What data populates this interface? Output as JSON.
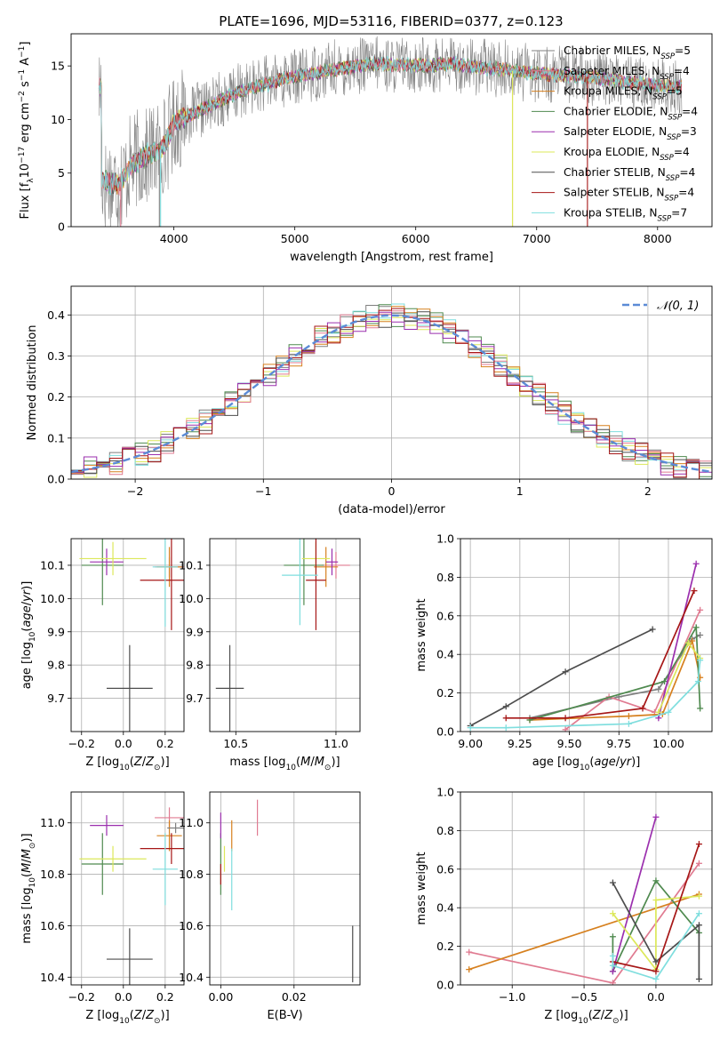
{
  "figure": {
    "title": "PLATE=1696, MJD=53116, FIBERID=0377, z=0.123"
  },
  "colors": {
    "chabrier_miles": "#7f7f7f",
    "salpeter_miles": "#e07b91",
    "kroupa_miles": "#d6801f",
    "chabrier_elodie": "#4f8a4f",
    "salpeter_elodie": "#9b2fae",
    "kroupa_elodie": "#dce85a",
    "chabrier_stelib": "#4d4d4d",
    "salpeter_stelib": "#a61717",
    "kroupa_stelib": "#7fdede",
    "normal_curve": "#5b8bd6",
    "grid": "#b0b0b0"
  },
  "legend": {
    "spectrum": [
      {
        "pre": "Chabrier MILES, N",
        "sub": "SSP",
        "post": "=5",
        "color": "#7f7f7f"
      },
      {
        "pre": "Salpeter MILES, N",
        "sub": "SSP",
        "post": "=4",
        "color": "#e07b91"
      },
      {
        "pre": "Kroupa MILES, N",
        "sub": "SSP",
        "post": "=5",
        "color": "#d6801f"
      },
      {
        "pre": "Chabrier ELODIE, N",
        "sub": "SSP",
        "post": "=4",
        "color": "#4f8a4f"
      },
      {
        "pre": "Salpeter ELODIE, N",
        "sub": "SSP",
        "post": "=3",
        "color": "#9b2fae"
      },
      {
        "pre": "Kroupa ELODIE, N",
        "sub": "SSP",
        "post": "=4",
        "color": "#dce85a"
      },
      {
        "pre": "Chabrier STELIB, N",
        "sub": "SSP",
        "post": "=4",
        "color": "#4d4d4d"
      },
      {
        "pre": "Salpeter STELIB, N",
        "sub": "SSP",
        "post": "=4",
        "color": "#a61717"
      },
      {
        "pre": "Kroupa STELIB, N",
        "sub": "SSP",
        "post": "=7",
        "color": "#7fdede"
      }
    ],
    "residual": "𝒩(0, 1)"
  },
  "chart_data": [
    {
      "id": "spectrum",
      "type": "line",
      "xlabel": "wavelength [Angstrom, rest frame]",
      "ylabel": "Flux [f_λ 10^-17 erg cm^-2 s^-1 A^-1]",
      "xlim": [
        3150,
        8450
      ],
      "ylim": [
        0,
        18
      ],
      "xticks": [
        4000,
        5000,
        6000,
        7000,
        8000
      ],
      "yticks": [
        0,
        5,
        10,
        15
      ],
      "grid": false,
      "legend_position": "right",
      "continuum": [
        [
          3400,
          4.2
        ],
        [
          3550,
          4.0
        ],
        [
          3650,
          5.8
        ],
        [
          3800,
          6.8
        ],
        [
          3900,
          7.2
        ],
        [
          3950,
          8.2
        ],
        [
          4000,
          9.8
        ],
        [
          4150,
          10.5
        ],
        [
          4300,
          11.3
        ],
        [
          4500,
          12.4
        ],
        [
          4700,
          13.1
        ],
        [
          4900,
          13.8
        ],
        [
          5100,
          14.2
        ],
        [
          5300,
          14.6
        ],
        [
          5500,
          15.0
        ],
        [
          5700,
          15.2
        ],
        [
          5900,
          15.1
        ],
        [
          6100,
          15.0
        ],
        [
          6300,
          15.2
        ],
        [
          6500,
          14.9
        ],
        [
          6700,
          14.7
        ],
        [
          6900,
          14.4
        ],
        [
          7100,
          14.2
        ],
        [
          7300,
          14.1
        ],
        [
          7500,
          13.9
        ],
        [
          7700,
          13.6
        ],
        [
          7900,
          13.3
        ],
        [
          8100,
          13.1
        ],
        [
          8200,
          13.0
        ]
      ],
      "x_range": [
        3380,
        8200
      ],
      "noise": [
        2.6,
        0.5,
        0.45,
        0.5,
        0.45,
        0.4,
        0.5,
        0.45,
        0.55
      ],
      "spikes": [
        {
          "series": 2,
          "x": 6800,
          "y": 0
        },
        {
          "series": 5,
          "x": 6800,
          "y": 0
        },
        {
          "series": 7,
          "x": 7420,
          "y": 0
        },
        {
          "series": 0,
          "x": 3880,
          "y": 0
        },
        {
          "series": 8,
          "x": 3890,
          "y": 0
        },
        {
          "series": 1,
          "x": 3560,
          "y": 0
        }
      ]
    },
    {
      "id": "residuals",
      "type": "histogram",
      "xlabel": "(data-model)/error",
      "ylabel": "Normed distribution",
      "xlim": [
        -2.5,
        2.5
      ],
      "ylim": [
        0,
        0.47
      ],
      "xticks": [
        -2,
        -1,
        0,
        1,
        2
      ],
      "yticks": [
        0.0,
        0.1,
        0.2,
        0.3,
        0.4
      ],
      "grid": true,
      "bin_width": 0.1,
      "legend_position": "top-right",
      "normal": {
        "mean": 0,
        "sigma": 1
      }
    },
    {
      "id": "age_vs_Z",
      "type": "errorbar",
      "xlabel": "Z [log10(Z/Z☉)]",
      "ylabel": "age  [log10(age/yr)]",
      "xlim": [
        -0.25,
        0.29
      ],
      "ylim": [
        9.6,
        10.18
      ],
      "xticks": [
        -0.2,
        0.0,
        0.2
      ],
      "yticks": [
        9.7,
        9.8,
        9.9,
        10.0,
        10.1
      ],
      "grid": true,
      "points": [
        {
          "x": 0.22,
          "y": 10.095,
          "xerr": 0.07,
          "yerr": 0.03,
          "c": 1
        },
        {
          "x": 0.22,
          "y": 10.095,
          "xerr": 0.06,
          "yerr": 0.06,
          "c": 2
        },
        {
          "x": -0.1,
          "y": 10.1,
          "xerr": 0.1,
          "yerr": 0.12,
          "c": 3
        },
        {
          "x": -0.08,
          "y": 10.11,
          "xerr": 0.08,
          "yerr": 0.04,
          "c": 4
        },
        {
          "x": -0.05,
          "y": 10.12,
          "xerr": 0.16,
          "yerr": 0.05,
          "c": 5
        },
        {
          "x": 0.03,
          "y": 9.73,
          "xerr": 0.11,
          "yerr": 0.13,
          "c": 6
        },
        {
          "x": 0.23,
          "y": 10.055,
          "xerr": 0.15,
          "yerr": 0.15,
          "c": 7
        },
        {
          "x": 0.2,
          "y": 10.095,
          "xerr": 0.06,
          "yerr": 0.18,
          "c": 8
        }
      ]
    },
    {
      "id": "age_vs_mass",
      "type": "errorbar",
      "xlabel": "mass [log10(M/M☉)]",
      "ylabel": "",
      "xlim": [
        10.37,
        11.12
      ],
      "ylim": [
        9.6,
        10.18
      ],
      "xticks": [
        10.5,
        11.0
      ],
      "yticks": [
        9.7,
        9.8,
        9.9,
        10.0,
        10.1
      ],
      "grid": true,
      "points": [
        {
          "x": 11.0,
          "y": 10.1,
          "xerr": 0.07,
          "yerr": 0.04,
          "c": 1
        },
        {
          "x": 10.95,
          "y": 10.095,
          "xerr": 0.06,
          "yerr": 0.06,
          "c": 2
        },
        {
          "x": 10.84,
          "y": 10.1,
          "xerr": 0.1,
          "yerr": 0.12,
          "c": 3
        },
        {
          "x": 10.98,
          "y": 10.11,
          "xerr": 0.03,
          "yerr": 0.04,
          "c": 4
        },
        {
          "x": 10.9,
          "y": 10.12,
          "xerr": 0.07,
          "yerr": 0.05,
          "c": 5
        },
        {
          "x": 10.47,
          "y": 9.73,
          "xerr": 0.07,
          "yerr": 0.13,
          "c": 6
        },
        {
          "x": 10.9,
          "y": 10.055,
          "xerr": 0.05,
          "yerr": 0.15,
          "c": 7
        },
        {
          "x": 10.82,
          "y": 10.07,
          "xerr": 0.09,
          "yerr": 0.15,
          "c": 8
        }
      ]
    },
    {
      "id": "weight_vs_age",
      "type": "line",
      "xlabel": "age  [log10(age/yr)]",
      "ylabel": "mass weight",
      "xlim": [
        8.95,
        10.22
      ],
      "ylim": [
        0.0,
        1.0
      ],
      "xticks": [
        9.0,
        9.25,
        9.5,
        9.75,
        10.0
      ],
      "yticks": [
        0.0,
        0.2,
        0.4,
        0.6,
        0.8,
        1.0
      ],
      "grid": true,
      "series": [
        {
          "c": 0,
          "points": [
            [
              9.3,
              0.07
            ],
            [
              9.75,
              0.18
            ],
            [
              9.95,
              0.22
            ],
            [
              10.12,
              0.48
            ],
            [
              10.16,
              0.5
            ]
          ]
        },
        {
          "c": 1,
          "points": [
            [
              9.48,
              0.01
            ],
            [
              9.7,
              0.18
            ],
            [
              9.93,
              0.1
            ],
            [
              10.16,
              0.63
            ]
          ]
        },
        {
          "c": 2,
          "points": [
            [
              9.3,
              0.06
            ],
            [
              9.8,
              0.08
            ],
            [
              9.97,
              0.09
            ],
            [
              10.12,
              0.47
            ],
            [
              10.16,
              0.28
            ]
          ]
        },
        {
          "c": 3,
          "points": [
            [
              9.3,
              0.06
            ],
            [
              9.98,
              0.26
            ],
            [
              10.14,
              0.54
            ],
            [
              10.16,
              0.12
            ]
          ]
        },
        {
          "c": 4,
          "points": [
            [
              9.95,
              0.07
            ],
            [
              10.14,
              0.87
            ]
          ]
        },
        {
          "c": 5,
          "points": [
            [
              9.95,
              0.1
            ],
            [
              10.1,
              0.46
            ],
            [
              10.16,
              0.38
            ]
          ]
        },
        {
          "c": 6,
          "points": [
            [
              9.0,
              0.03
            ],
            [
              9.18,
              0.13
            ],
            [
              9.48,
              0.31
            ],
            [
              9.92,
              0.53
            ]
          ]
        },
        {
          "c": 7,
          "points": [
            [
              9.18,
              0.07
            ],
            [
              9.48,
              0.07
            ],
            [
              9.87,
              0.12
            ],
            [
              10.13,
              0.73
            ]
          ]
        },
        {
          "c": 8,
          "points": [
            [
              9.0,
              0.02
            ],
            [
              9.18,
              0.02
            ],
            [
              9.8,
              0.04
            ],
            [
              10.0,
              0.1
            ],
            [
              10.15,
              0.26
            ],
            [
              10.16,
              0.37
            ]
          ]
        }
      ]
    },
    {
      "id": "mass_vs_Z",
      "type": "errorbar",
      "xlabel": "Z [log10(Z/Z☉)]",
      "ylabel": "mass [log10(M/M☉)]",
      "xlim": [
        -0.25,
        0.29
      ],
      "ylim": [
        10.37,
        11.12
      ],
      "xticks": [
        -0.2,
        0.0,
        0.2
      ],
      "yticks": [
        10.4,
        10.6,
        10.8,
        11.0
      ],
      "grid": true,
      "points": [
        {
          "x": 0.22,
          "y": 11.02,
          "xerr": 0.07,
          "yerr": 0.04,
          "c": 1
        },
        {
          "x": 0.22,
          "y": 10.95,
          "xerr": 0.06,
          "yerr": 0.06,
          "c": 2
        },
        {
          "x": -0.1,
          "y": 10.84,
          "xerr": 0.1,
          "yerr": 0.12,
          "c": 3
        },
        {
          "x": -0.08,
          "y": 10.99,
          "xerr": 0.08,
          "yerr": 0.04,
          "c": 4
        },
        {
          "x": -0.05,
          "y": 10.86,
          "xerr": 0.16,
          "yerr": 0.05,
          "c": 5
        },
        {
          "x": 0.03,
          "y": 10.47,
          "xerr": 0.11,
          "yerr": 0.12,
          "c": 6
        },
        {
          "x": 0.23,
          "y": 10.9,
          "xerr": 0.15,
          "yerr": 0.06,
          "c": 7
        },
        {
          "x": 0.2,
          "y": 10.82,
          "xerr": 0.06,
          "yerr": 0.14,
          "c": 8
        },
        {
          "x": 0.25,
          "y": 10.98,
          "xerr": 0.04,
          "yerr": 0.02,
          "c": 0
        }
      ]
    },
    {
      "id": "mass_vs_ebv",
      "type": "errorbar",
      "xlabel": "E(B-V)",
      "ylabel": "",
      "xlim": [
        -0.003,
        0.038
      ],
      "ylim": [
        10.37,
        11.12
      ],
      "xticks": [
        0.0,
        0.02
      ],
      "yticks": [
        10.4,
        10.6,
        10.8,
        11.0
      ],
      "grid": true,
      "points": [
        {
          "x": 0.01,
          "y": 11.02,
          "xerr": 0,
          "yerr": 0.07,
          "c": 1
        },
        {
          "x": 0.003,
          "y": 10.95,
          "xerr": 0,
          "yerr": 0.06,
          "c": 2
        },
        {
          "x": 0.0,
          "y": 10.84,
          "xerr": 0,
          "yerr": 0.12,
          "c": 3
        },
        {
          "x": 0.0,
          "y": 10.99,
          "xerr": 0,
          "yerr": 0.05,
          "c": 4
        },
        {
          "x": 0.001,
          "y": 10.86,
          "xerr": 0,
          "yerr": 0.05,
          "c": 5
        },
        {
          "x": 0.036,
          "y": 10.49,
          "xerr": 0,
          "yerr": 0.11,
          "c": 6
        },
        {
          "x": 0.003,
          "y": 10.78,
          "xerr": 0,
          "yerr": 0.12,
          "c": 8
        },
        {
          "x": 0.0,
          "y": 10.8,
          "xerr": 0,
          "yerr": 0.04,
          "c": 7
        }
      ]
    },
    {
      "id": "weight_vs_Z",
      "type": "line",
      "xlabel": "Z [log10(Z/Z☉)]",
      "ylabel": "mass weight",
      "xlim": [
        -1.36,
        0.39
      ],
      "ylim": [
        0.0,
        1.0
      ],
      "xticks": [
        -1.0,
        -0.5,
        0.0
      ],
      "yticks": [
        0.0,
        0.2,
        0.4,
        0.6,
        0.8,
        1.0
      ],
      "grid": true,
      "series": [
        {
          "c": 1,
          "points": [
            [
              -1.3,
              0.17
            ],
            [
              -0.3,
              0.01
            ],
            [
              0.3,
              0.63
            ]
          ]
        },
        {
          "c": 2,
          "points": [
            [
              -1.3,
              0.08
            ],
            [
              0.3,
              0.47
            ]
          ]
        },
        {
          "c": 3,
          "points": [
            [
              -0.3,
              0.25
            ],
            [
              -0.3,
              0.07
            ],
            [
              0.0,
              0.54
            ],
            [
              0.3,
              0.27
            ]
          ]
        },
        {
          "c": 4,
          "points": [
            [
              -0.3,
              0.07
            ],
            [
              0.0,
              0.87
            ]
          ]
        },
        {
          "c": 5,
          "points": [
            [
              -0.3,
              0.37
            ],
            [
              0.0,
              0.08
            ],
            [
              0.0,
              0.44
            ],
            [
              0.3,
              0.46
            ]
          ]
        },
        {
          "c": 6,
          "points": [
            [
              -0.3,
              0.53
            ],
            [
              0.0,
              0.12
            ],
            [
              0.3,
              0.31
            ],
            [
              0.3,
              0.03
            ]
          ]
        },
        {
          "c": 7,
          "points": [
            [
              -0.3,
              0.12
            ],
            [
              0.0,
              0.07
            ],
            [
              0.3,
              0.73
            ]
          ]
        },
        {
          "c": 8,
          "points": [
            [
              -0.3,
              0.15
            ],
            [
              -0.3,
              0.1
            ],
            [
              0.0,
              0.03
            ],
            [
              0.3,
              0.37
            ]
          ]
        }
      ]
    }
  ]
}
